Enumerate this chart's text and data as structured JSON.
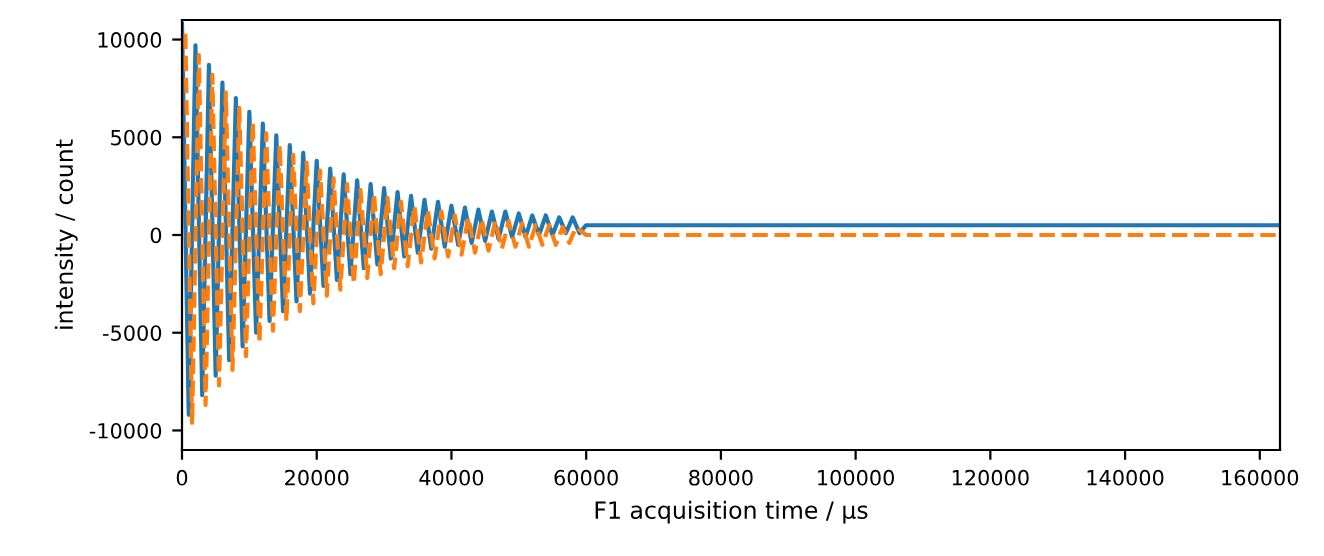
{
  "chart_data": {
    "type": "line",
    "xlabel": "F1 acquisition time / μs",
    "ylabel": "intensity / count",
    "xlim": [
      0,
      163000
    ],
    "ylim": [
      -11000,
      11000
    ],
    "xticks": [
      0,
      20000,
      40000,
      60000,
      80000,
      100000,
      120000,
      140000,
      160000
    ],
    "yticks": [
      -10000,
      -5000,
      0,
      5000,
      10000
    ],
    "grid": false,
    "legend": false,
    "series": [
      {
        "color": "#1f77b4",
        "line_style": "solid",
        "x": [
          0,
          1000,
          2000,
          3000,
          4000,
          5000,
          6000,
          7000,
          8000,
          9000,
          10000,
          11000,
          12000,
          13000,
          14000,
          15000,
          16000,
          17000,
          18000,
          19000,
          20000,
          21000,
          22000,
          23000,
          24000,
          25000,
          26000,
          27000,
          28000,
          29000,
          30000,
          31000,
          32000,
          33000,
          34000,
          35000,
          36000,
          37000,
          38000,
          39000,
          40000,
          41000,
          42000,
          43000,
          44000,
          45000,
          46000,
          47000,
          48000,
          49000,
          50000,
          51000,
          52000,
          53000,
          54000,
          55000,
          56000,
          57000,
          58000,
          59000,
          60000,
          163000
        ],
        "values": [
          10800,
          -9200,
          9700,
          -8200,
          8700,
          -7200,
          7800,
          -6400,
          7000,
          -5700,
          6300,
          -5000,
          5700,
          -4400,
          5100,
          -3900,
          4600,
          -3400,
          4200,
          -3000,
          3800,
          -2600,
          3400,
          -2300,
          3100,
          -2000,
          2800,
          -1700,
          2600,
          -1500,
          2400,
          -1200,
          2200,
          -1100,
          2000,
          -900,
          1800,
          -700,
          1700,
          -600,
          1500,
          -500,
          1400,
          -400,
          1300,
          -300,
          1200,
          -200,
          1200,
          -100,
          1100,
          -100,
          1000,
          0,
          1000,
          0,
          900,
          100,
          900,
          100,
          500,
          500
        ]
      },
      {
        "color": "#ff7f0e",
        "line_style": "dashed",
        "x": [
          500,
          1500,
          2500,
          3500,
          4500,
          5500,
          6500,
          7500,
          8500,
          9500,
          10500,
          11500,
          12500,
          13500,
          14500,
          15500,
          16500,
          17500,
          18500,
          19500,
          20500,
          21500,
          22500,
          23500,
          24500,
          25500,
          26500,
          27500,
          28500,
          29500,
          30500,
          31500,
          32500,
          33500,
          34500,
          35500,
          36500,
          37500,
          38500,
          39500,
          40500,
          41500,
          42500,
          43500,
          44500,
          45500,
          46500,
          47500,
          48500,
          49500,
          50500,
          51500,
          52500,
          53500,
          54500,
          55500,
          56500,
          57500,
          58500,
          60000,
          163000
        ],
        "values": [
          10300,
          -9700,
          9200,
          -8700,
          8200,
          -7700,
          7300,
          -6900,
          6500,
          -6200,
          5800,
          -5500,
          5200,
          -4900,
          4600,
          -4400,
          4100,
          -3900,
          3700,
          -3500,
          3300,
          -3100,
          2900,
          -2800,
          2600,
          -2500,
          2300,
          -2200,
          2100,
          -2000,
          1900,
          -1700,
          1700,
          -1600,
          1500,
          -1400,
          1300,
          -1200,
          1200,
          -1100,
          1000,
          -1000,
          900,
          -900,
          800,
          -800,
          700,
          -700,
          700,
          -600,
          600,
          -600,
          500,
          -500,
          500,
          -500,
          400,
          -400,
          400,
          0,
          0
        ]
      }
    ]
  }
}
